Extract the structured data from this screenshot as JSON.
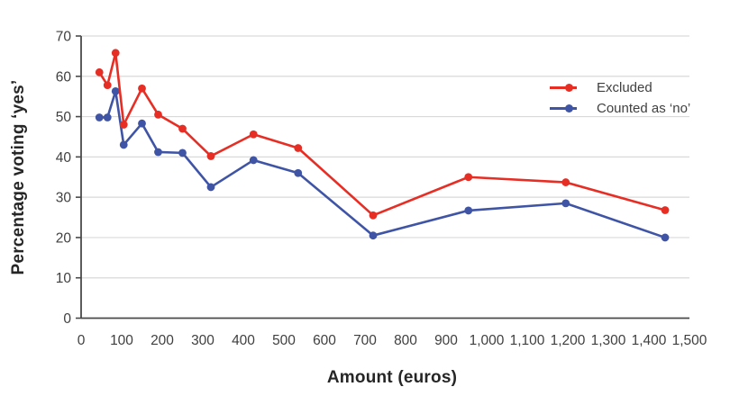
{
  "axes": {
    "x_title": "Amount (euros)",
    "y_title": "Percentage voting ‘yes’"
  },
  "legend": {
    "items": [
      {
        "label": "Excluded",
        "color": "#e62e25"
      },
      {
        "label": "Counted as ‘no’",
        "color": "#3f54a5"
      }
    ]
  },
  "colors": {
    "background": "#ffffff",
    "grid": "#d9d9d9",
    "axis": "#4a4a4a",
    "tick_text": "#3f3f3f",
    "title_text": "#262626",
    "series_excluded": "#e62e25",
    "series_counted_no": "#3f54a5"
  },
  "chart_data": {
    "type": "line",
    "title": "",
    "xlabel": "Amount (euros)",
    "ylabel": "Percentage voting ‘yes’",
    "xlim": [
      0,
      1500
    ],
    "ylim": [
      0,
      70
    ],
    "grid": "horizontal",
    "legend_position": "inside-top-right",
    "x_tick_labels": [
      "0",
      "100",
      "200",
      "300",
      "400",
      "500",
      "600",
      "700",
      "800",
      "900",
      "1,000",
      "1,100",
      "1,200",
      "1,300",
      "1,400",
      "1,500"
    ],
    "y_tick_labels": [
      "0",
      "10",
      "20",
      "30",
      "40",
      "50",
      "60",
      "70"
    ],
    "x": [
      45,
      65,
      85,
      105,
      150,
      190,
      250,
      320,
      425,
      535,
      720,
      955,
      1195,
      1440
    ],
    "series": [
      {
        "name": "Excluded",
        "color": "#e62e25",
        "values": [
          61,
          57.8,
          65.8,
          48,
          57,
          50.5,
          47,
          40.2,
          45.6,
          42.2,
          25.5,
          35,
          33.7,
          26.8
        ]
      },
      {
        "name": "Counted as ‘no’",
        "color": "#3f54a5",
        "values": [
          49.8,
          49.8,
          56.3,
          43,
          48.3,
          41.2,
          41,
          32.5,
          39.2,
          36,
          20.5,
          26.7,
          28.5,
          20
        ]
      }
    ]
  }
}
